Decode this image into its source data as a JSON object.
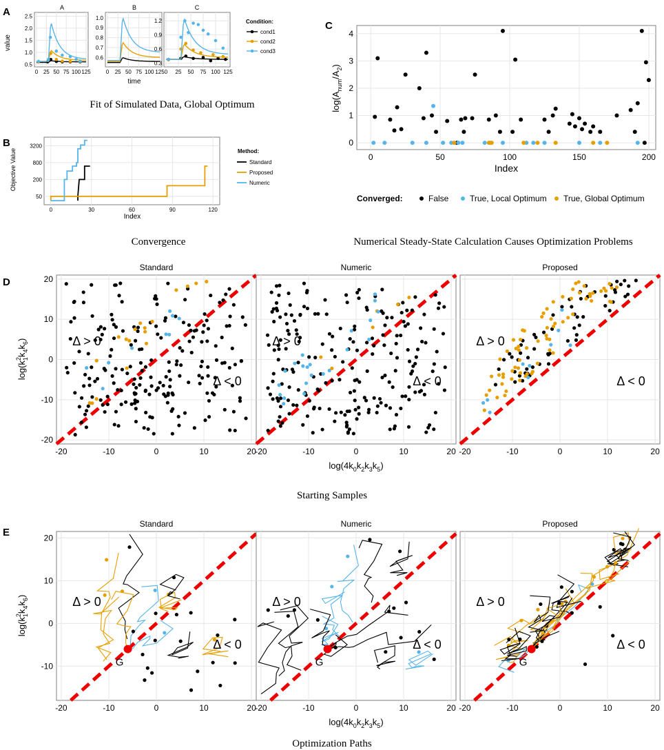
{
  "figure": {
    "captions": {
      "a": "Fit of Simulated Data, Global Optimum",
      "b": "Convergence",
      "c": "Numerical Steady-State Calculation Causes Optimization Problems",
      "d": "Starting Samples",
      "e": "Optimization Paths"
    },
    "colors": {
      "black": "#000000",
      "orange": "#E69F00",
      "blue": "#56B4E9",
      "red": "#EE0000",
      "grid": "#E6E6E6",
      "frame": "#7F7F7F"
    }
  },
  "chart_data": [
    {
      "id": "A",
      "type": "line",
      "panel_letter": "A",
      "ylabel": "value",
      "xlabel": "time",
      "legend_title": "Condition:",
      "legend_labels": [
        "cond1",
        "cond2",
        "cond3"
      ],
      "facets": [
        {
          "title": "A",
          "yticks": [
            0.5,
            1.0,
            1.5,
            2.0,
            2.5
          ],
          "ylim": [
            0.45,
            2.6
          ],
          "peak": [
            0.65,
            1.1,
            2.3
          ],
          "base": [
            0.58,
            0.62,
            0.62
          ],
          "end": [
            0.6,
            0.66,
            0.7
          ],
          "points": {
            "cond1": [
              [
                5,
                0.6
              ],
              [
                28,
                0.6
              ],
              [
                36,
                0.7
              ],
              [
                50,
                0.62
              ],
              [
                65,
                0.6
              ],
              [
                85,
                0.6
              ],
              [
                110,
                0.6
              ]
            ],
            "cond2": [
              [
                5,
                0.6
              ],
              [
                30,
                0.7
              ],
              [
                36,
                0.95
              ],
              [
                50,
                0.7
              ],
              [
                65,
                0.63
              ],
              [
                85,
                0.62
              ],
              [
                110,
                0.62
              ]
            ],
            "cond3": [
              [
                5,
                0.62
              ],
              [
                30,
                0.7
              ],
              [
                35,
                1.62
              ],
              [
                50,
                1.05
              ],
              [
                65,
                0.88
              ],
              [
                85,
                0.82
              ],
              [
                100,
                0.7
              ],
              [
                110,
                0.62
              ]
            ]
          }
        },
        {
          "title": "B",
          "yticks": [
            0.6,
            0.7,
            0.8,
            0.9,
            1.0
          ],
          "ylim": [
            0.52,
            1.04
          ],
          "peak": [
            0.6,
            0.76,
            1.02
          ],
          "base": [
            0.55,
            0.56,
            0.57
          ],
          "end": [
            0.56,
            0.6,
            0.65
          ],
          "points": {
            "cond1": [],
            "cond2": [],
            "cond3": []
          }
        },
        {
          "title": "C",
          "yticks": [
            0.3,
            0.6,
            0.9,
            1.2
          ],
          "ylim": [
            0.25,
            1.35
          ],
          "peak": [
            0.44,
            0.72,
            1.28
          ],
          "base": [
            0.38,
            0.38,
            0.38
          ],
          "end": [
            0.38,
            0.42,
            0.48
          ],
          "points": {
            "cond1": [
              [
                5,
                0.38
              ],
              [
                30,
                0.4
              ],
              [
                40,
                0.45
              ],
              [
                55,
                0.4
              ],
              [
                75,
                0.42
              ],
              [
                90,
                0.35
              ],
              [
                105,
                0.4
              ],
              [
                120,
                0.38
              ]
            ],
            "cond2": [
              [
                5,
                0.37
              ],
              [
                30,
                0.6
              ],
              [
                40,
                0.72
              ],
              [
                55,
                0.58
              ],
              [
                70,
                0.52
              ],
              [
                95,
                0.48
              ],
              [
                115,
                0.44
              ]
            ],
            "cond3": [
              [
                5,
                0.38
              ],
              [
                30,
                0.85
              ],
              [
                38,
                1.2
              ],
              [
                45,
                0.95
              ],
              [
                55,
                1.15
              ],
              [
                65,
                1.12
              ],
              [
                75,
                1.0
              ],
              [
                85,
                0.92
              ],
              [
                100,
                0.78
              ],
              [
                115,
                0.62
              ]
            ]
          }
        }
      ],
      "xticks": [
        0,
        25,
        50,
        75,
        100,
        125
      ],
      "xlim": [
        0,
        125
      ]
    },
    {
      "id": "B",
      "type": "line",
      "panel_letter": "B",
      "xlabel": "Index",
      "ylabel": "Objective Value",
      "legend_title": "Method:",
      "legend_labels": [
        "Standard",
        "Proposed",
        "Numeric"
      ],
      "yticks": [
        50,
        200,
        800,
        3200
      ],
      "xticks": [
        0,
        30,
        60,
        90,
        120
      ],
      "xlim": [
        -5,
        125
      ],
      "series": [
        {
          "name": "Standard",
          "values": [
            [
              20,
              35
            ],
            [
              20,
              50
            ],
            [
              21,
              200
            ],
            [
              25,
              200
            ],
            [
              25,
              600
            ],
            [
              29,
              600
            ]
          ]
        },
        {
          "name": "Proposed",
          "values": [
            [
              0,
              35
            ],
            [
              0,
              50
            ],
            [
              86,
              50
            ],
            [
              86,
              120
            ],
            [
              114,
              120
            ],
            [
              114,
              600
            ],
            [
              116,
              600
            ]
          ]
        },
        {
          "name": "Numeric",
          "values": [
            [
              0,
              35
            ],
            [
              10,
              35
            ],
            [
              10,
              200
            ],
            [
              12,
              200
            ],
            [
              12,
              400
            ],
            [
              16,
              400
            ],
            [
              16,
              600
            ],
            [
              19,
              600
            ],
            [
              19,
              800
            ],
            [
              20,
              800
            ],
            [
              20,
              2500
            ],
            [
              22,
              2500
            ],
            [
              22,
              3400
            ],
            [
              25,
              3400
            ],
            [
              25,
              5000
            ],
            [
              27,
              5000
            ]
          ]
        }
      ]
    },
    {
      "id": "C",
      "type": "scatter",
      "panel_letter": "C",
      "xlabel": "Index",
      "ylabel": "log(A_num/A_2)",
      "ylabel_main": "log(A",
      "ylabel_sub1": "num",
      "ylabel_mid": "/A",
      "ylabel_sub2": "2",
      "ylabel_end": ")",
      "xticks": [
        0,
        50,
        100,
        150,
        200
      ],
      "yticks": [
        0,
        1,
        2,
        3,
        4
      ],
      "xlim": [
        -10,
        205
      ],
      "ylim": [
        -0.25,
        4.3
      ],
      "legend_title": "Converged:",
      "legend_labels": [
        "False",
        "True, Local Optimum",
        "True, Global Optimum"
      ],
      "series": [
        {
          "name": "False",
          "values": [
            [
              3,
              0.95
            ],
            [
              5,
              3.1
            ],
            [
              14,
              0.85
            ],
            [
              17,
              0.45
            ],
            [
              19,
              1.3
            ],
            [
              22,
              0.5
            ],
            [
              25,
              2.5
            ],
            [
              35,
              2.0
            ],
            [
              38,
              0.9
            ],
            [
              40,
              3.3
            ],
            [
              44,
              1.0
            ],
            [
              47,
              0.4
            ],
            [
              55,
              0.8
            ],
            [
              62,
              0.0
            ],
            [
              65,
              0.85
            ],
            [
              67,
              0.4
            ],
            [
              68,
              0.9
            ],
            [
              73,
              0.9
            ],
            [
              75,
              2.5
            ],
            [
              85,
              0.85
            ],
            [
              90,
              1.0
            ],
            [
              93,
              0.4
            ],
            [
              95,
              4.1
            ],
            [
              102,
              0.4
            ],
            [
              104,
              3.05
            ],
            [
              108,
              0.85
            ],
            [
              125,
              0.85
            ],
            [
              128,
              0.4
            ],
            [
              131,
              1.0
            ],
            [
              133,
              1.25
            ],
            [
              143,
              0.7
            ],
            [
              145,
              1.05
            ],
            [
              147,
              0.6
            ],
            [
              150,
              0.9
            ],
            [
              152,
              0.5
            ],
            [
              154,
              0.7
            ],
            [
              158,
              0.4
            ],
            [
              160,
              0.6
            ],
            [
              165,
              0.4
            ],
            [
              177,
              1.0
            ],
            [
              187,
              1.2
            ],
            [
              190,
              0.4
            ],
            [
              192,
              1.45
            ],
            [
              195,
              4.1
            ],
            [
              197,
              0.0
            ],
            [
              198,
              2.95
            ],
            [
              200,
              2.3
            ]
          ]
        },
        {
          "name": "True, Local Optimum",
          "values": [
            [
              2,
              0.0
            ],
            [
              10,
              0.0
            ],
            [
              30,
              0.0
            ],
            [
              40,
              0.0
            ],
            [
              45,
              1.35
            ],
            [
              52,
              0.0
            ],
            [
              58,
              0.0
            ],
            [
              63,
              0.0
            ],
            [
              66,
              0.0
            ],
            [
              82,
              0.0
            ],
            [
              86,
              0.0
            ],
            [
              95,
              0.0
            ],
            [
              112,
              0.0
            ],
            [
              117,
              0.0
            ],
            [
              125,
              0.0
            ],
            [
              150,
              0.0
            ],
            [
              165,
              0.0
            ],
            [
              192,
              0.0
            ]
          ]
        },
        {
          "name": "True, Global Optimum",
          "values": [
            [
              60,
              0.0
            ],
            [
              85,
              0.0
            ],
            [
              87,
              0.0
            ],
            [
              110,
              0.0
            ],
            [
              120,
              0.0
            ],
            [
              133,
              0.0
            ],
            [
              160,
              0.0
            ],
            [
              170,
              0.0
            ]
          ]
        }
      ]
    },
    {
      "id": "D",
      "type": "scatter",
      "panel_letter": "D",
      "facet_titles": [
        "Standard",
        "Numeric",
        "Proposed"
      ],
      "xlabel": "log(4k0k2k3k5)",
      "xlabel_parts": [
        "log(4k",
        "0",
        "k",
        "2",
        "k",
        "3",
        "k",
        "5",
        ")"
      ],
      "ylabel_parts": [
        "log(k",
        "1",
        "2",
        "k",
        "4",
        "k",
        "6",
        ")"
      ],
      "region_labels": [
        "Δ > 0",
        "Δ < 0"
      ],
      "xticks": [
        -20,
        -10,
        0,
        10,
        20
      ],
      "yticks": [
        -20,
        -10,
        0,
        10,
        20
      ],
      "xlim": [
        -21,
        21
      ],
      "ylim": [
        -21,
        21
      ],
      "seed": [
        101,
        202,
        303
      ]
    },
    {
      "id": "E",
      "type": "line",
      "panel_letter": "E",
      "facet_titles": [
        "Standard",
        "Numeric",
        "Proposed"
      ],
      "xlabel": "log(4k0k2k3k5)",
      "xlabel_parts": [
        "log(4k",
        "0",
        "k",
        "2",
        "k",
        "3",
        "k",
        "5",
        ")"
      ],
      "ylabel_parts": [
        "log(k",
        "1",
        "2",
        "k",
        "4",
        "k",
        "6",
        ")"
      ],
      "region_labels": [
        "Δ > 0",
        "Δ < 0"
      ],
      "global_label": "G",
      "global_point": [
        -6,
        -6
      ],
      "xticks": [
        -20,
        -10,
        0,
        10,
        20
      ],
      "yticks": [
        -10,
        0,
        10,
        20
      ],
      "xlim": [
        -21,
        21
      ],
      "ylim": [
        -18,
        21.5
      ],
      "seed": [
        404,
        505,
        606
      ]
    }
  ]
}
